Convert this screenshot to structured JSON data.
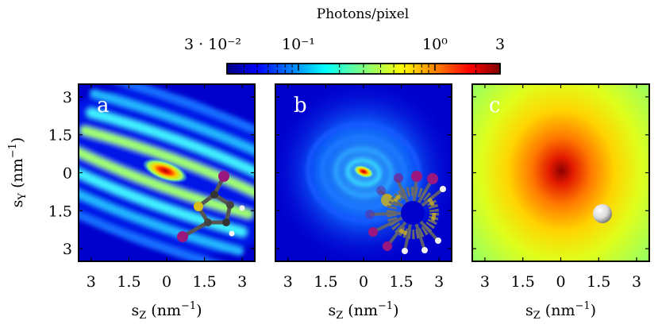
{
  "chart_data": {
    "type": "heatmap",
    "colorbar": {
      "title": "Photons/pixel",
      "scale": "log",
      "range": [
        0.03,
        3
      ],
      "ticks": [
        {
          "value": 0.03,
          "label": "3 · 10⁻²"
        },
        {
          "value": 0.1,
          "label": "10⁻¹"
        },
        {
          "value": 1,
          "label": "10⁰"
        },
        {
          "value": 3,
          "label": "3"
        }
      ],
      "colormap": "jet"
    },
    "y_axis": {
      "label": "s",
      "label_sub": "Y",
      "label_unit": " (nm",
      "label_exp": "−1",
      "label_close": ")",
      "tick_labels": [
        "3",
        "1.5",
        "0",
        "1.5",
        "3"
      ],
      "tick_values": [
        3,
        1.5,
        0,
        -1.5,
        -3
      ]
    },
    "x_axis": {
      "label": "s",
      "label_sub": "Z",
      "label_unit": " (nm",
      "label_exp": "−1",
      "label_close": ")",
      "tick_labels": [
        "3",
        "1.5",
        "0",
        "1.5",
        "3"
      ],
      "tick_values": [
        -3,
        -1.5,
        0,
        1.5,
        3
      ]
    },
    "panels": [
      {
        "id": "a",
        "label": "a",
        "pattern": "fringes"
      },
      {
        "id": "b",
        "label": "b",
        "pattern": "rings"
      },
      {
        "id": "c",
        "label": "c",
        "pattern": "blob"
      }
    ]
  }
}
